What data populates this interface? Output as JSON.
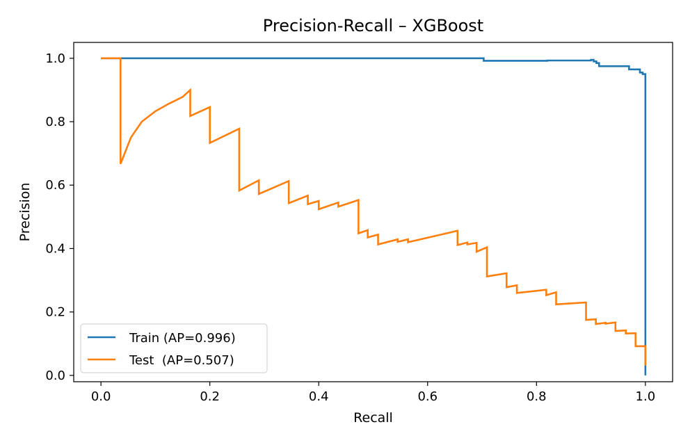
{
  "chart_data": {
    "type": "line",
    "title": "Precision-Recall – XGBoost",
    "xlabel": "Recall",
    "ylabel": "Precision",
    "xlim": [
      -0.05,
      1.05
    ],
    "ylim": [
      -0.02,
      1.05
    ],
    "xticks": [
      0.0,
      0.2,
      0.4,
      0.6,
      0.8,
      1.0
    ],
    "xtick_labels": [
      "0.0",
      "0.2",
      "0.4",
      "0.6",
      "0.8",
      "1.0"
    ],
    "yticks": [
      0.0,
      0.2,
      0.4,
      0.6,
      0.8,
      1.0
    ],
    "ytick_labels": [
      "0.0",
      "0.2",
      "0.4",
      "0.6",
      "0.8",
      "1.0"
    ],
    "grid": false,
    "legend_position": "lower-left",
    "series": [
      {
        "name": "Train (AP=0.996)",
        "color": "#1f77b4",
        "step": true,
        "x": [
          0.0,
          0.703,
          0.82,
          0.9,
          0.905,
          0.91,
          0.915,
          0.97,
          0.99,
          0.995,
          1.0,
          1.0
        ],
        "y": [
          1.0,
          0.992,
          0.993,
          0.995,
          0.99,
          0.985,
          0.975,
          0.965,
          0.955,
          0.95,
          0.947,
          0.0
        ]
      },
      {
        "name": "Test  (AP=0.507)",
        "color": "#ff7f0e",
        "step": false,
        "x": [
          0.0,
          0.036,
          0.036,
          0.055,
          0.075,
          0.1,
          0.125,
          0.15,
          0.164,
          0.164,
          0.2,
          0.2,
          0.254,
          0.254,
          0.29,
          0.29,
          0.345,
          0.345,
          0.38,
          0.38,
          0.4,
          0.4,
          0.436,
          0.436,
          0.473,
          0.473,
          0.49,
          0.49,
          0.509,
          0.509,
          0.545,
          0.545,
          0.564,
          0.564,
          0.655,
          0.655,
          0.673,
          0.673,
          0.69,
          0.69,
          0.709,
          0.709,
          0.745,
          0.745,
          0.764,
          0.764,
          0.818,
          0.818,
          0.836,
          0.836,
          0.891,
          0.891,
          0.909,
          0.909,
          0.927,
          0.927,
          0.945,
          0.945,
          0.964,
          0.964,
          0.982,
          0.982,
          1.0,
          1.0
        ],
        "y": [
          1.0,
          1.0,
          0.667,
          0.75,
          0.8,
          0.833,
          0.857,
          0.878,
          0.9,
          0.818,
          0.846,
          0.733,
          0.778,
          0.583,
          0.615,
          0.572,
          0.613,
          0.543,
          0.567,
          0.54,
          0.55,
          0.524,
          0.545,
          0.532,
          0.553,
          0.448,
          0.458,
          0.435,
          0.444,
          0.413,
          0.429,
          0.421,
          0.429,
          0.42,
          0.456,
          0.411,
          0.419,
          0.413,
          0.418,
          0.39,
          0.404,
          0.312,
          0.322,
          0.278,
          0.284,
          0.26,
          0.27,
          0.253,
          0.262,
          0.224,
          0.23,
          0.175,
          0.177,
          0.162,
          0.166,
          0.163,
          0.167,
          0.14,
          0.142,
          0.132,
          0.133,
          0.092,
          0.092,
          0.031
        ]
      }
    ]
  }
}
